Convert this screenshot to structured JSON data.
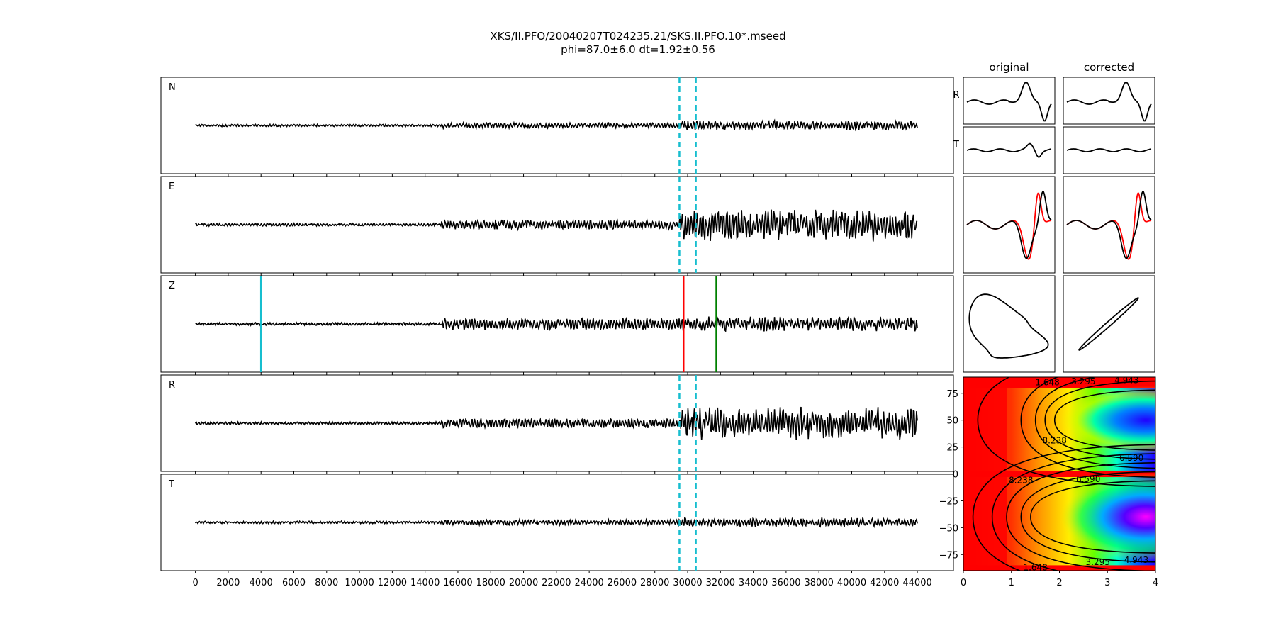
{
  "title": {
    "line1": "XKS/II.PFO/20040207T024235.21/SKS.II.PFO.10*.mseed",
    "line2": "phi=87.0±6.0 dt=1.92±0.56"
  },
  "chart_data": [
    {
      "type": "line",
      "panel": "trace-panels",
      "traces": [
        {
          "label": "N",
          "amplitude_profile": "low",
          "markers": [
            "window-start",
            "window-end"
          ]
        },
        {
          "label": "E",
          "amplitude_profile": "high",
          "markers": [
            "window-start",
            "window-end"
          ]
        },
        {
          "label": "Z",
          "amplitude_profile": "medium",
          "markers": [
            "pick-cyan",
            "pick-red",
            "pick-green"
          ]
        },
        {
          "label": "R",
          "amplitude_profile": "high",
          "markers": [
            "window-start",
            "window-end"
          ]
        },
        {
          "label": "T",
          "amplitude_profile": "low",
          "markers": [
            "window-start",
            "window-end"
          ]
        }
      ],
      "x_range": [
        0,
        44000
      ],
      "x_axis_extent": [
        -2100,
        46200
      ],
      "x_ticks": [
        "0",
        "2000",
        "4000",
        "6000",
        "8000",
        "10000",
        "12000",
        "14000",
        "16000",
        "18000",
        "20000",
        "22000",
        "24000",
        "26000",
        "28000",
        "30000",
        "32000",
        "34000",
        "36000",
        "38000",
        "40000",
        "42000",
        "44000"
      ],
      "window_start_x": 29500,
      "window_end_x": 30500,
      "picks": [
        {
          "x": 4000,
          "color": "#17becf"
        },
        {
          "x": 29750,
          "color": "#ff0000"
        },
        {
          "x": 31750,
          "color": "#008000"
        }
      ],
      "window_color": "#17becf"
    },
    {
      "type": "line",
      "panel": "waveform-comparison",
      "columns": [
        "original",
        "corrected"
      ],
      "rows": [
        "R",
        "T"
      ],
      "particle_motion_rows": 2,
      "overlay_colors": {
        "primary": "#000000",
        "overlay": "#ff0000"
      }
    },
    {
      "type": "heatmap",
      "panel": "error-surface",
      "xlim": [
        0,
        4
      ],
      "ylim": [
        -90,
        90
      ],
      "x_ticks": [
        "0",
        "1",
        "2",
        "3",
        "4"
      ],
      "y_ticks": [
        "75",
        "50",
        "25",
        "0",
        "−25",
        "−50",
        "−75"
      ],
      "contour_labels": [
        "1.648",
        "3.295",
        "4.943",
        "6.590",
        "8.238"
      ],
      "colormap": "gist_rainbow",
      "minima": [
        {
          "x": 3.8,
          "y": 50
        },
        {
          "x": 3.8,
          "y": -40
        }
      ]
    }
  ]
}
